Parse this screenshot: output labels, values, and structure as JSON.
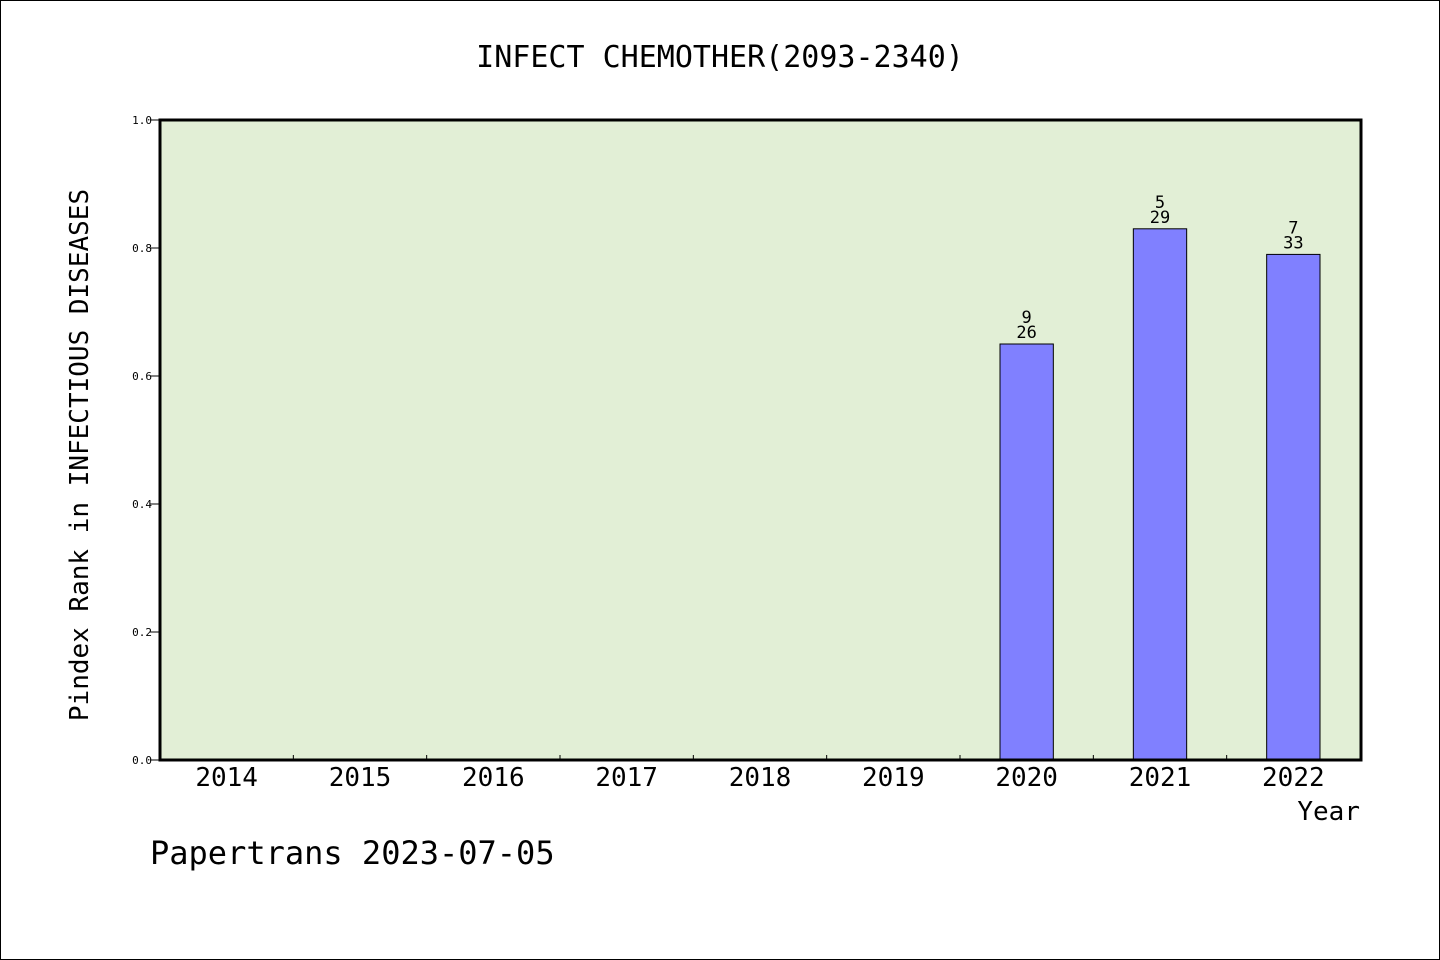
{
  "chart_data": {
    "type": "bar",
    "title": "INFECT CHEMOTHER(2093-2340)",
    "xlabel": "Year",
    "ylabel": "Pindex Rank in INFECTIOUS DISEASES",
    "categories": [
      "2014",
      "2015",
      "2016",
      "2017",
      "2018",
      "2019",
      "2020",
      "2021",
      "2022"
    ],
    "values": [
      null,
      null,
      null,
      null,
      null,
      null,
      0.65,
      0.83,
      0.79
    ],
    "bar_labels": [
      null,
      null,
      null,
      null,
      null,
      null,
      {
        "rank": "9",
        "total": "26"
      },
      {
        "rank": "5",
        "total": "29"
      },
      {
        "rank": "7",
        "total": "33"
      }
    ],
    "ylim": [
      0,
      1.0
    ],
    "yticks": [
      "0.0",
      "0.2",
      "0.4",
      "0.6",
      "0.8",
      "1.0"
    ],
    "grid": false,
    "legend": "none",
    "colors": {
      "plot_background": "#e2efd6",
      "bar_fill": "#8080ff",
      "bar_stroke": "#000000",
      "axis": "#000000"
    }
  },
  "footer": {
    "credit": "Papertrans 2023-07-05"
  }
}
